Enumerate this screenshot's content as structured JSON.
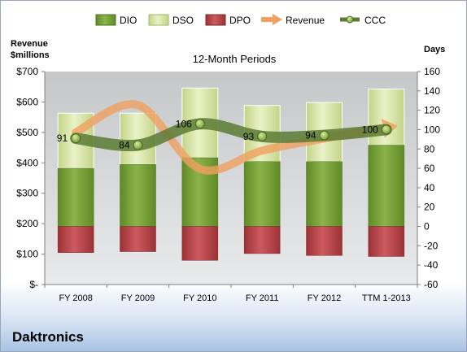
{
  "company": "Daktronics",
  "chart_data": {
    "type": "bar",
    "title": "12-Month Periods",
    "ylabel_left": [
      "Revenue",
      "$millions"
    ],
    "ylabel_right": "Days",
    "categories": [
      "FY 2008",
      "FY 2009",
      "FY 2010",
      "FY 2011",
      "FY 2012",
      "TTM 1-2013"
    ],
    "left_axis": {
      "min": 0,
      "max": 700,
      "step": 100,
      "tick_labels": [
        "$-",
        "$100",
        "$200",
        "$300",
        "$400",
        "$500",
        "$600",
        "$700"
      ]
    },
    "right_axis": {
      "min": -60,
      "max": 160,
      "step": 20,
      "tick_labels": [
        "-60",
        "-40",
        "-20",
        "0",
        "20",
        "40",
        "60",
        "80",
        "100",
        "120",
        "140",
        "160"
      ]
    },
    "legend": [
      "DIO",
      "DSO",
      "DPO",
      "Revenue",
      "CCC"
    ],
    "legend_position": "top",
    "series": [
      {
        "name": "DIO",
        "axis": "right",
        "kind": "stacked-bar",
        "color": "#7aa33a",
        "values": [
          60,
          64,
          71,
          67,
          67,
          84
        ]
      },
      {
        "name": "DSO",
        "axis": "right",
        "kind": "stacked-bar",
        "color": "#d7e4a6",
        "values": [
          57,
          53,
          72,
          58,
          61,
          58
        ]
      },
      {
        "name": "DPO",
        "axis": "right",
        "kind": "bar-negative",
        "color": "#b84a4e",
        "values": [
          -27,
          -26,
          -35,
          -28,
          -30,
          -31
        ]
      },
      {
        "name": "Revenue",
        "axis": "left",
        "kind": "line",
        "color": "#f0a060",
        "values": [
          500,
          590,
          380,
          440,
          480,
          515
        ]
      },
      {
        "name": "CCC",
        "axis": "right",
        "kind": "line",
        "color": "#5b7b34",
        "values": [
          91,
          84,
          106,
          93,
          94,
          100
        ]
      }
    ],
    "data_labels": {
      "series": "CCC",
      "values": [
        "91",
        "84",
        "106",
        "93",
        "94",
        "100"
      ]
    },
    "grid": false
  }
}
